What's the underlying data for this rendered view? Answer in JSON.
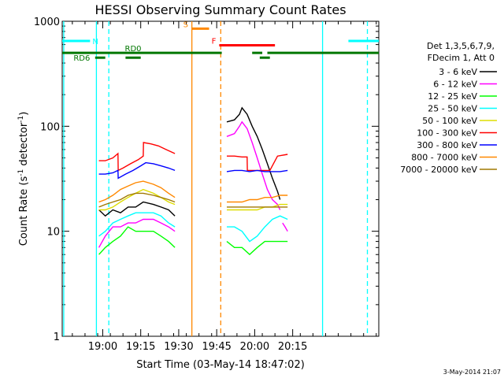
{
  "chart_data": {
    "type": "line",
    "title": "HESSI Observing Summary Count Rates",
    "xlabel": "Start Time (03-May-14 18:47:02)",
    "ylabel_main": "Count Rate (s",
    "ylabel_sup1": "-1",
    "ylabel_mid": " detector",
    "ylabel_sup2": "-1",
    "ylabel_end": ")",
    "x_range_min": [
      -3,
      122
    ],
    "y_scale": "log",
    "y_range": [
      1,
      1000
    ],
    "x_ticks": [
      {
        "min": 13,
        "label": "19:00"
      },
      {
        "min": 28,
        "label": "19:15"
      },
      {
        "min": 43,
        "label": "19:30"
      },
      {
        "min": 58,
        "label": "19:45"
      },
      {
        "min": 73,
        "label": "20:00"
      },
      {
        "min": 88,
        "label": "20:15"
      }
    ],
    "y_ticks": [
      {
        "value": 1,
        "label": "1"
      },
      {
        "value": 10,
        "label": "10"
      },
      {
        "value": 100,
        "label": "100"
      },
      {
        "value": 1000,
        "label": "1000"
      }
    ],
    "legend": {
      "title_line1": "Det 1,3,5,6,7,9,",
      "title_line2": "FDecim 1, Att 0",
      "placement": "right",
      "entries": [
        {
          "label": "3 - 6 keV",
          "color": "#000000"
        },
        {
          "label": "6 - 12 keV",
          "color": "#ff00ff"
        },
        {
          "label": "12 - 25 keV",
          "color": "#00ff00"
        },
        {
          "label": "25 - 50 keV",
          "color": "#00ffff"
        },
        {
          "label": "50 - 100 keV",
          "color": "#dddd00"
        },
        {
          "label": "100 - 300 keV",
          "color": "#ff0000"
        },
        {
          "label": "300 - 800 keV",
          "color": "#0000ff"
        },
        {
          "label": "800 - 7000 keV",
          "color": "#ff8800"
        },
        {
          "label": "7000 - 20000 keV",
          "color": "#a07800"
        }
      ]
    },
    "series": [
      {
        "name": "3 - 6 keV",
        "color": "#000000",
        "segments": [
          [
            [
              11.5,
              16
            ],
            [
              14,
              14
            ],
            [
              17,
              16
            ],
            [
              20,
              15
            ],
            [
              23,
              17
            ],
            [
              26,
              17
            ],
            [
              29,
              19
            ],
            [
              33,
              18
            ],
            [
              36,
              17
            ],
            [
              39,
              16
            ],
            [
              41.5,
              14
            ]
          ],
          [
            [
              62,
              110
            ],
            [
              65,
              115
            ],
            [
              67,
              130
            ],
            [
              68,
              150
            ],
            [
              70,
              130
            ],
            [
              72,
              100
            ],
            [
              74,
              80
            ],
            [
              76,
              60
            ],
            [
              78,
              44
            ],
            [
              80,
              32
            ],
            [
              82,
              24
            ],
            [
              83,
              20
            ]
          ]
        ]
      },
      {
        "name": "6 - 12 keV",
        "color": "#ff00ff",
        "segments": [
          [
            [
              11.5,
              7
            ],
            [
              14,
              9
            ],
            [
              17,
              11
            ],
            [
              20,
              11
            ],
            [
              23,
              12
            ],
            [
              26,
              12
            ],
            [
              29,
              13
            ],
            [
              33,
              13
            ],
            [
              36,
              12
            ],
            [
              39,
              11
            ],
            [
              41.5,
              10
            ]
          ],
          [
            [
              62,
              80
            ],
            [
              65,
              85
            ],
            [
              67,
              100
            ],
            [
              68,
              110
            ],
            [
              70,
              95
            ],
            [
              72,
              70
            ],
            [
              74,
              50
            ],
            [
              76,
              35
            ],
            [
              78,
              25
            ],
            [
              80,
              20
            ],
            [
              82,
              18
            ],
            [
              83,
              16
            ]
          ],
          [
            [
              84,
              12
            ],
            [
              85,
              11
            ],
            [
              86,
              10
            ]
          ]
        ]
      },
      {
        "name": "12 - 25 keV",
        "color": "#00ff00",
        "segments": [
          [
            [
              11.5,
              6
            ],
            [
              14,
              7
            ],
            [
              17,
              8
            ],
            [
              20,
              9
            ],
            [
              23,
              11
            ],
            [
              26,
              10
            ],
            [
              29,
              10
            ],
            [
              33,
              10
            ],
            [
              36,
              9
            ],
            [
              39,
              8
            ],
            [
              41.5,
              7
            ]
          ],
          [
            [
              62,
              8
            ],
            [
              65,
              7
            ],
            [
              68,
              7
            ],
            [
              71,
              6
            ],
            [
              74,
              7
            ],
            [
              77,
              8
            ],
            [
              80,
              8
            ],
            [
              83,
              8
            ],
            [
              86,
              8
            ]
          ]
        ]
      },
      {
        "name": "25 - 50 keV",
        "color": "#00ffff",
        "segments": [
          [
            [
              11.5,
              9
            ],
            [
              14,
              10
            ],
            [
              17,
              12
            ],
            [
              20,
              13
            ],
            [
              23,
              14
            ],
            [
              26,
              15
            ],
            [
              29,
              15
            ],
            [
              33,
              15
            ],
            [
              36,
              14
            ],
            [
              39,
              12
            ],
            [
              41.5,
              11
            ]
          ],
          [
            [
              62,
              11
            ],
            [
              65,
              11
            ],
            [
              68,
              10
            ],
            [
              71,
              8
            ],
            [
              74,
              9
            ],
            [
              77,
              11
            ],
            [
              80,
              13
            ],
            [
              83,
              14
            ],
            [
              86,
              13
            ]
          ]
        ]
      },
      {
        "name": "50 - 100 keV",
        "color": "#dddd00",
        "segments": [
          [
            [
              11.5,
              16
            ],
            [
              14,
              16
            ],
            [
              17,
              17
            ],
            [
              20,
              19
            ],
            [
              23,
              21
            ],
            [
              26,
              23
            ],
            [
              29,
              25
            ],
            [
              33,
              23
            ],
            [
              36,
              21
            ],
            [
              39,
              19
            ],
            [
              41.5,
              18
            ]
          ],
          [
            [
              62,
              16
            ],
            [
              65,
              16
            ],
            [
              68,
              16
            ],
            [
              71,
              16
            ],
            [
              74,
              16
            ],
            [
              77,
              17
            ],
            [
              80,
              17
            ],
            [
              83,
              18
            ],
            [
              86,
              18
            ]
          ]
        ]
      },
      {
        "name": "100 - 300 keV",
        "color": "#ff0000",
        "segments": [
          [
            [
              11.5,
              47
            ],
            [
              14,
              47
            ],
            [
              17,
              50
            ],
            [
              19,
              55
            ],
            [
              19.1,
              38
            ],
            [
              21,
              40
            ],
            [
              24,
              44
            ],
            [
              27,
              48
            ],
            [
              29,
              52
            ],
            [
              29.1,
              70
            ],
            [
              32,
              68
            ],
            [
              35,
              65
            ],
            [
              38,
              60
            ],
            [
              41.5,
              55
            ]
          ],
          [
            [
              62,
              52
            ],
            [
              65,
              52
            ],
            [
              68,
              51
            ],
            [
              70,
              51
            ],
            [
              70.1,
              38
            ],
            [
              73,
              38
            ],
            [
              76,
              38
            ],
            [
              79,
              38
            ],
            [
              82,
              52
            ],
            [
              86,
              54
            ]
          ]
        ]
      },
      {
        "name": "300 - 800 keV",
        "color": "#0000ff",
        "segments": [
          [
            [
              11.5,
              35
            ],
            [
              14,
              35
            ],
            [
              17,
              36
            ],
            [
              19,
              38
            ],
            [
              19.1,
              32
            ],
            [
              22,
              35
            ],
            [
              25,
              38
            ],
            [
              28,
              42
            ],
            [
              30,
              45
            ],
            [
              33,
              44
            ],
            [
              36,
              42
            ],
            [
              39,
              40
            ],
            [
              41.5,
              38
            ]
          ],
          [
            [
              62,
              37
            ],
            [
              65,
              38
            ],
            [
              68,
              38
            ],
            [
              71,
              37
            ],
            [
              74,
              38
            ],
            [
              77,
              37
            ],
            [
              80,
              37
            ],
            [
              83,
              37
            ],
            [
              86,
              38
            ]
          ]
        ]
      },
      {
        "name": "800 - 7000 keV",
        "color": "#ff8800",
        "segments": [
          [
            [
              11.5,
              19
            ],
            [
              14,
              20
            ],
            [
              17,
              22
            ],
            [
              20,
              25
            ],
            [
              23,
              27
            ],
            [
              26,
              29
            ],
            [
              29,
              30
            ],
            [
              33,
              28
            ],
            [
              36,
              26
            ],
            [
              39,
              23
            ],
            [
              41.5,
              21
            ]
          ],
          [
            [
              62,
              19
            ],
            [
              65,
              19
            ],
            [
              68,
              19
            ],
            [
              71,
              20
            ],
            [
              74,
              20
            ],
            [
              77,
              21
            ],
            [
              80,
              21
            ],
            [
              83,
              22
            ],
            [
              86,
              22
            ]
          ]
        ]
      },
      {
        "name": "7000 - 20000 keV",
        "color": "#a07800",
        "segments": [
          [
            [
              11.5,
              17
            ],
            [
              14,
              18
            ],
            [
              17,
              19
            ],
            [
              20,
              20
            ],
            [
              23,
              22
            ],
            [
              26,
              23
            ],
            [
              29,
              23
            ],
            [
              33,
              22
            ],
            [
              36,
              21
            ],
            [
              39,
              20
            ],
            [
              41.5,
              19
            ]
          ],
          [
            [
              62,
              17
            ],
            [
              65,
              17
            ],
            [
              68,
              17
            ],
            [
              71,
              17
            ],
            [
              74,
              17
            ],
            [
              77,
              17
            ],
            [
              80,
              17
            ],
            [
              83,
              17
            ],
            [
              86,
              17
            ]
          ]
        ]
      }
    ],
    "flag_bars": [
      {
        "label": "N",
        "color": "#00ffff",
        "value": 650,
        "ranges": [
          [
            -3,
            8
          ],
          [
            110,
            122
          ]
        ]
      },
      {
        "label": "S",
        "color": "#ff8800",
        "value": 850,
        "ranges": [
          [
            48,
            55
          ]
        ]
      },
      {
        "label": "F",
        "color": "#ff0000",
        "value": 590,
        "ranges": [
          [
            59,
            81
          ]
        ]
      },
      {
        "label": "RD0",
        "color": "#007700",
        "value": 500,
        "ranges": [
          [
            -3,
            60
          ],
          [
            72,
            76
          ],
          [
            78,
            122
          ]
        ]
      },
      {
        "label": "RD6",
        "color": "#007700",
        "value": 450,
        "ranges": [
          [
            10,
            14
          ],
          [
            22,
            28
          ],
          [
            75,
            79
          ]
        ]
      }
    ],
    "vlines": [
      {
        "min": -2.4,
        "color": "#00ffff",
        "style": "solid"
      },
      {
        "min": 10.5,
        "color": "#00ffff",
        "style": "solid"
      },
      {
        "min": 15.4,
        "color": "#00ffff",
        "style": "dashed"
      },
      {
        "min": 48.2,
        "color": "#ff8800",
        "style": "solid"
      },
      {
        "min": 59.6,
        "color": "#ff8800",
        "style": "dashed"
      },
      {
        "min": 99.8,
        "color": "#00ffff",
        "style": "solid"
      },
      {
        "min": 117.5,
        "color": "#00ffff",
        "style": "dashed"
      }
    ]
  },
  "footer": {
    "date_stamp": "3-May-2014 21:07"
  }
}
